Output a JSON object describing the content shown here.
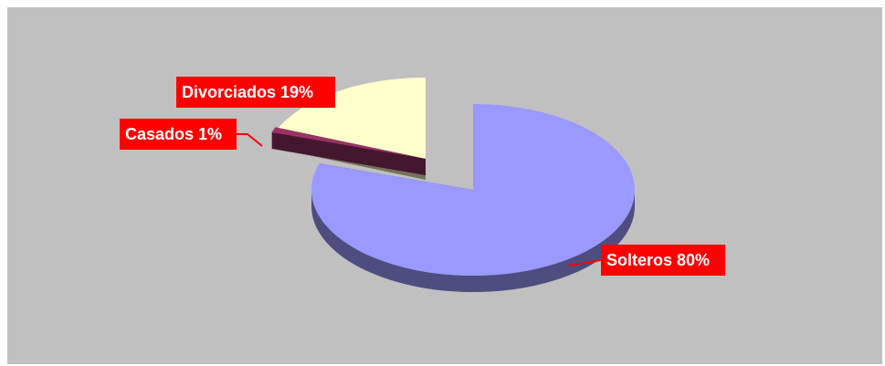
{
  "chart_data": {
    "type": "pie",
    "title": "",
    "categories": [
      "Solteros",
      "Casados",
      "Divorciados"
    ],
    "values": [
      80,
      1,
      19
    ],
    "labels": [
      "Solteros 80%",
      "Casados 1%",
      "Divorciados 19%"
    ],
    "exploded": [
      false,
      true,
      true
    ],
    "colors": {
      "Solteros": "#9999ff",
      "Casados": "#993366",
      "Divorciados": "#ffffcc"
    },
    "label_background": "#ff0000",
    "label_text_color": "#ffffff",
    "plot_background": "#c0c0c0",
    "legend": "none",
    "three_d": true
  }
}
